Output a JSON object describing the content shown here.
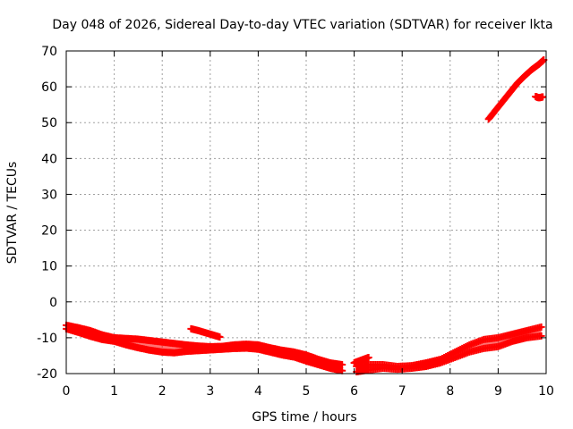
{
  "chart_data": {
    "type": "scatter",
    "title": "Day 048 of 2026, Sidereal Day-to-day VTEC variation (SDTVAR) for receiver lkta",
    "xlabel": "GPS time / hours",
    "ylabel": "SDTVAR / TECUs",
    "xlim": [
      0,
      10
    ],
    "ylim": [
      -20,
      70
    ],
    "x_ticks": [
      0,
      1,
      2,
      3,
      4,
      5,
      6,
      7,
      8,
      9,
      10
    ],
    "y_ticks": [
      -20,
      -10,
      0,
      10,
      20,
      30,
      40,
      50,
      60,
      70
    ],
    "grid": true,
    "marker_color": "#ff0000",
    "grid_color": "#a0a0a0",
    "series": [
      {
        "name": "main-band-upper",
        "x": [
          0.0,
          0.25,
          0.5,
          0.75,
          1.0,
          1.25,
          1.5,
          1.75,
          2.0,
          2.25,
          2.5,
          2.75,
          3.0,
          3.25,
          3.5,
          3.75,
          4.0,
          4.25,
          4.5,
          4.75,
          5.0,
          5.25,
          5.5,
          5.75
        ],
        "y": [
          -6.5,
          -7.2,
          -8.0,
          -9.2,
          -10.0,
          -10.2,
          -10.4,
          -10.8,
          -11.2,
          -11.6,
          -12.0,
          -12.3,
          -12.5,
          -12.4,
          -12.0,
          -11.8,
          -12.0,
          -12.8,
          -13.5,
          -14.0,
          -14.8,
          -16.0,
          -17.0,
          -17.5
        ]
      },
      {
        "name": "main-band-lower",
        "x": [
          0.0,
          0.25,
          0.5,
          0.75,
          1.0,
          1.25,
          1.5,
          1.75,
          2.0,
          2.25,
          2.5,
          2.75,
          3.0,
          3.25,
          3.5,
          3.75,
          4.0,
          4.25,
          4.5,
          4.75,
          5.0,
          5.25,
          5.5,
          5.75
        ],
        "y": [
          -7.5,
          -8.5,
          -9.6,
          -10.5,
          -11.0,
          -12.0,
          -12.8,
          -13.5,
          -14.0,
          -14.2,
          -13.8,
          -13.6,
          -13.4,
          -13.2,
          -13.0,
          -12.9,
          -13.2,
          -14.0,
          -14.8,
          -15.4,
          -16.5,
          -17.5,
          -18.5,
          -19.2
        ]
      },
      {
        "name": "segment-2.6-3.2",
        "x": [
          2.6,
          2.75,
          2.9,
          3.05,
          3.2
        ],
        "y": [
          -7.5,
          -8.0,
          -8.6,
          -9.2,
          -9.8
        ]
      },
      {
        "name": "afternoon-upper",
        "x": [
          6.05,
          6.3,
          6.6,
          6.9,
          7.2,
          7.5,
          7.8,
          8.1,
          8.4,
          8.7,
          9.0,
          9.3,
          9.6,
          9.9
        ],
        "y": [
          -18.0,
          -17.5,
          -17.5,
          -18.0,
          -17.8,
          -17.0,
          -16.0,
          -14.0,
          -12.0,
          -10.5,
          -10.0,
          -9.0,
          -8.0,
          -7.0
        ]
      },
      {
        "name": "afternoon-lower",
        "x": [
          6.05,
          6.3,
          6.6,
          6.9,
          7.2,
          7.5,
          7.8,
          8.1,
          8.4,
          8.7,
          9.0,
          9.3,
          9.6,
          9.9
        ],
        "y": [
          -19.5,
          -19.0,
          -18.5,
          -18.8,
          -18.5,
          -18.0,
          -17.0,
          -15.5,
          -14.0,
          -13.0,
          -12.5,
          -11.0,
          -10.0,
          -9.5
        ]
      },
      {
        "name": "segment-6.0-6.3",
        "x": [
          6.0,
          6.1,
          6.2,
          6.3
        ],
        "y": [
          -17.0,
          -16.5,
          -16.0,
          -15.5
        ]
      },
      {
        "name": "rising-arc",
        "x": [
          8.8,
          8.95,
          9.1,
          9.25,
          9.4,
          9.55,
          9.7,
          9.85,
          9.95
        ],
        "y": [
          51.0,
          53.5,
          56.0,
          58.5,
          61.0,
          63.0,
          64.8,
          66.3,
          67.5
        ]
      },
      {
        "name": "segment-9.8",
        "x": [
          9.78,
          9.83,
          9.88,
          9.93
        ],
        "y": [
          57.3,
          57.0,
          57.0,
          57.2
        ]
      }
    ]
  }
}
